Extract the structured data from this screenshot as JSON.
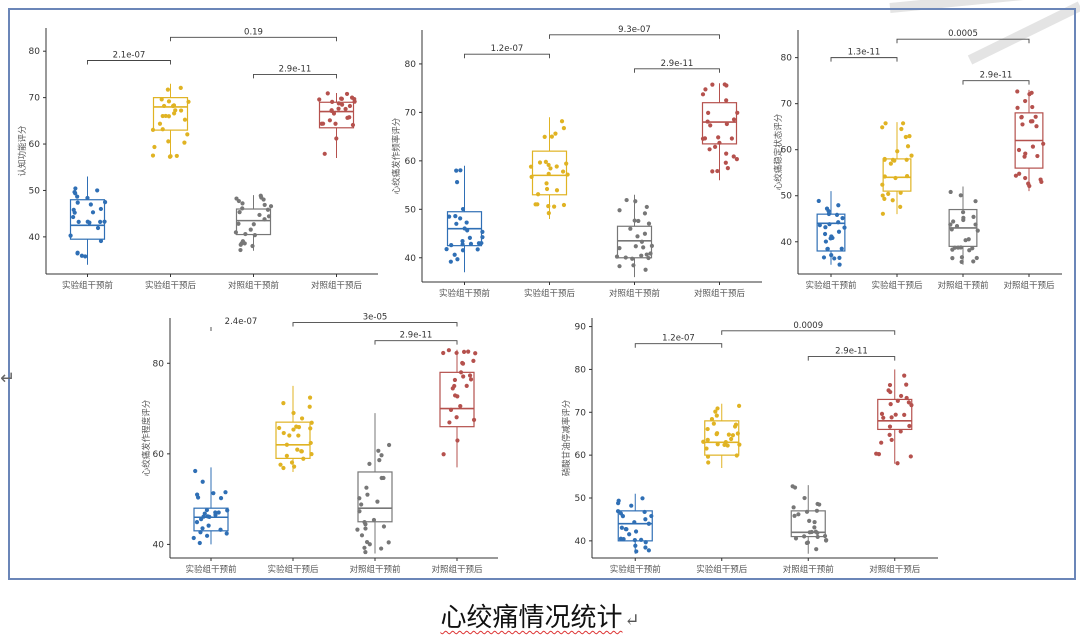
{
  "caption": {
    "title": "心绞痛情况统计",
    "para_mark": "↵",
    "left_mark": "↵"
  },
  "colors": {
    "blue": "#2f6fb5",
    "yellow": "#e0b323",
    "gray": "#777777",
    "red": "#b5514d",
    "frame": "#6b86b8"
  },
  "chart_data": [
    {
      "type": "box",
      "ylabel": "认知功能评分",
      "ylim": [
        32,
        85
      ],
      "yticks": [
        40,
        50,
        60,
        70,
        80
      ],
      "categories": [
        "实验组干预前",
        "实验组干预后",
        "对照组干预前",
        "对照组干预后"
      ],
      "boxes": [
        {
          "q1": 39.5,
          "median": 42.5,
          "q3": 48,
          "whisker_low": 34,
          "whisker_high": 53
        },
        {
          "q1": 63,
          "median": 68,
          "q3": 70,
          "whisker_low": 57,
          "whisker_high": 73
        },
        {
          "q1": 40.5,
          "median": 43.5,
          "q3": 46,
          "whisker_low": 37,
          "whisker_high": 49
        },
        {
          "q1": 63.5,
          "median": 67,
          "q3": 69,
          "whisker_low": 57,
          "whisker_high": 71
        }
      ],
      "annotations": [
        {
          "text": "2.1e-07",
          "from": 0,
          "to": 1,
          "y": 78
        },
        {
          "text": "0.19",
          "from": 1,
          "to": 3,
          "y": 83
        },
        {
          "text": "2.9e-11",
          "from": 2,
          "to": 3,
          "y": 75
        }
      ]
    },
    {
      "type": "box",
      "ylabel": "心绞痛发作频率评分",
      "ylim": [
        35,
        87
      ],
      "yticks": [
        40,
        50,
        60,
        70,
        80
      ],
      "categories": [
        "实验组干预前",
        "实验组干预后",
        "对照组干预前",
        "对照组干预后"
      ],
      "boxes": [
        {
          "q1": 42.5,
          "median": 46,
          "q3": 49.5,
          "whisker_low": 37,
          "whisker_high": 59
        },
        {
          "q1": 53,
          "median": 57,
          "q3": 62,
          "whisker_low": 48,
          "whisker_high": 69
        },
        {
          "q1": 40,
          "median": 43.5,
          "q3": 46.5,
          "whisker_low": 36,
          "whisker_high": 53
        },
        {
          "q1": 63.5,
          "median": 68,
          "q3": 72,
          "whisker_low": 56,
          "whisker_high": 76
        }
      ],
      "annotations": [
        {
          "text": "1.2e-07",
          "from": 0,
          "to": 1,
          "y": 82
        },
        {
          "text": "9.3e-07",
          "from": 1,
          "to": 3,
          "y": 86
        },
        {
          "text": "2.9e-11",
          "from": 2,
          "to": 3,
          "y": 79
        }
      ]
    },
    {
      "type": "box",
      "ylabel": "心绞痛稳定状态评分",
      "ylim": [
        33,
        86
      ],
      "yticks": [
        40,
        50,
        60,
        70,
        80
      ],
      "categories": [
        "实验组干预前",
        "实验组干预后",
        "对照组干预前",
        "对照组干预后"
      ],
      "boxes": [
        {
          "q1": 38,
          "median": 44,
          "q3": 46,
          "whisker_low": 35,
          "whisker_high": 51
        },
        {
          "q1": 51,
          "median": 54,
          "q3": 58,
          "whisker_low": 46,
          "whisker_high": 66
        },
        {
          "q1": 39,
          "median": 43,
          "q3": 47,
          "whisker_low": 35,
          "whisker_high": 52
        },
        {
          "q1": 56,
          "median": 62,
          "q3": 68,
          "whisker_low": 51,
          "whisker_high": 73
        }
      ],
      "annotations": [
        {
          "text": "1.3e-11",
          "from": 0,
          "to": 1,
          "y": 80
        },
        {
          "text": "0.0005",
          "from": 1,
          "to": 3,
          "y": 84
        },
        {
          "text": "2.9e-11",
          "from": 2,
          "to": 3,
          "y": 75
        }
      ]
    },
    {
      "type": "box",
      "ylabel": "心绞痛发作程度评分",
      "ylim": [
        37,
        90
      ],
      "yticks": [
        40,
        60,
        80
      ],
      "categories": [
        "实验组干预前",
        "实验组干预后",
        "对照组干预前",
        "对照组干预后"
      ],
      "boxes": [
        {
          "q1": 43,
          "median": 46,
          "q3": 48,
          "whisker_low": 40,
          "whisker_high": 57
        },
        {
          "q1": 59,
          "median": 62,
          "q3": 67,
          "whisker_low": 56,
          "whisker_high": 75
        },
        {
          "q1": 45,
          "median": 48,
          "q3": 56,
          "whisker_low": 38,
          "whisker_high": 69
        },
        {
          "q1": 66,
          "median": 70,
          "q3": 78,
          "whisker_low": 57,
          "whisker_high": 83
        }
      ],
      "annotations": [
        {
          "text": "2.4e-07",
          "from": 0,
          "to": 0.02,
          "y": 88
        },
        {
          "text": "3e-05",
          "from": 1,
          "to": 3,
          "y": 89
        },
        {
          "text": "2.9e-11",
          "from": 2,
          "to": 3,
          "y": 85
        }
      ]
    },
    {
      "type": "box",
      "ylabel": "硝酸甘油停减率评分",
      "ylim": [
        36,
        92
      ],
      "yticks": [
        40,
        50,
        60,
        70,
        80,
        90
      ],
      "categories": [
        "实验组干预前",
        "实验组干预后",
        "对照组干预前",
        "对照组干预后"
      ],
      "boxes": [
        {
          "q1": 40,
          "median": 44,
          "q3": 47,
          "whisker_low": 37,
          "whisker_high": 51
        },
        {
          "q1": 60,
          "median": 63,
          "q3": 68,
          "whisker_low": 57,
          "whisker_high": 72
        },
        {
          "q1": 41,
          "median": 42,
          "q3": 47,
          "whisker_low": 37,
          "whisker_high": 53
        },
        {
          "q1": 66,
          "median": 68,
          "q3": 73,
          "whisker_low": 58,
          "whisker_high": 80
        }
      ],
      "annotations": [
        {
          "text": "1.2e-07",
          "from": 0,
          "to": 1,
          "y": 86
        },
        {
          "text": "0.0009",
          "from": 1,
          "to": 3,
          "y": 89
        },
        {
          "text": "2.9e-11",
          "from": 2,
          "to": 3,
          "y": 83
        }
      ]
    }
  ]
}
